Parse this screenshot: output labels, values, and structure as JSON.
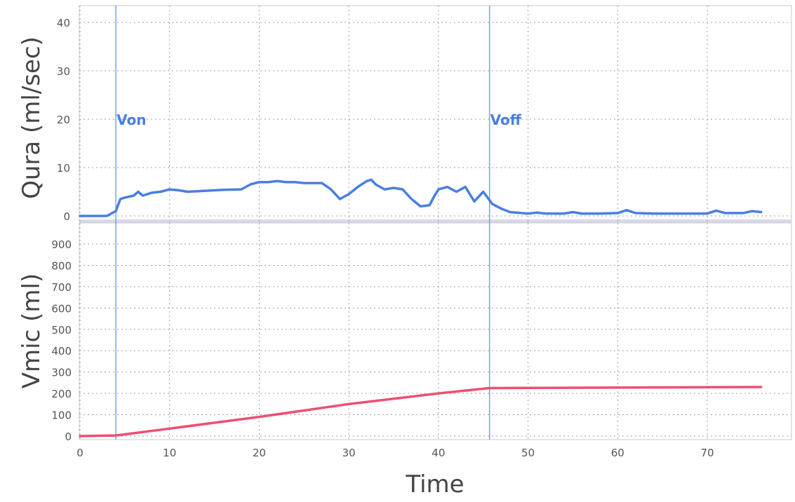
{
  "chart_data": [
    {
      "type": "line",
      "ylabel": "Qura (ml/sec)",
      "ylim": [
        0,
        43
      ],
      "yticks": [
        0,
        10,
        20,
        30,
        40
      ],
      "xlim": [
        0,
        80
      ],
      "grid": true,
      "series": [
        {
          "color": "#4a7fe0",
          "x": [
            0,
            2,
            3,
            4,
            4.5,
            5,
            6,
            6.5,
            7,
            7.5,
            8,
            9,
            10,
            11,
            12,
            14,
            16,
            18,
            19,
            20,
            21,
            22,
            23,
            24,
            25,
            26,
            27,
            28,
            29,
            30,
            31,
            32,
            32.5,
            33,
            34,
            35,
            36,
            37,
            38,
            39,
            39.5,
            40,
            41,
            42,
            43,
            44,
            45,
            46,
            47,
            48,
            50,
            51,
            52,
            54,
            55,
            56,
            58,
            60,
            61,
            62,
            64,
            66,
            68,
            70,
            71,
            72,
            74,
            75,
            76
          ],
          "values": [
            0,
            0,
            0,
            1,
            3.5,
            3.8,
            4.2,
            5,
            4.2,
            4.5,
            4.8,
            5,
            5.5,
            5.3,
            5,
            5.2,
            5.4,
            5.5,
            6.5,
            7,
            7,
            7.2,
            7,
            7,
            6.8,
            6.8,
            6.8,
            5.5,
            3.5,
            4.5,
            6,
            7.2,
            7.5,
            6.5,
            5.5,
            5.8,
            5.5,
            3.5,
            2,
            2.2,
            4,
            5.5,
            6,
            5,
            6,
            3,
            5,
            2.5,
            1.5,
            0.8,
            0.5,
            0.7,
            0.5,
            0.5,
            0.8,
            0.5,
            0.5,
            0.6,
            1.2,
            0.6,
            0.5,
            0.5,
            0.5,
            0.5,
            1.1,
            0.6,
            0.6,
            1,
            0.8
          ]
        }
      ],
      "annotations": [
        {
          "label": "Von",
          "x": 4
        },
        {
          "label": "Voff",
          "x": 45.7
        }
      ]
    },
    {
      "type": "line",
      "ylabel": "Vmic (ml)",
      "xlabel": "Time",
      "ylim": [
        0,
        1000
      ],
      "yticks": [
        0,
        100,
        200,
        300,
        400,
        500,
        600,
        700,
        800,
        900
      ],
      "xlim": [
        0,
        80
      ],
      "xticks": [
        0,
        10,
        20,
        30,
        40,
        50,
        60,
        70
      ],
      "grid": true,
      "series": [
        {
          "color": "#ee4f70",
          "x": [
            0,
            4,
            10,
            20,
            30,
            40,
            45.7,
            76
          ],
          "values": [
            0,
            3,
            35,
            90,
            150,
            200,
            225,
            230
          ]
        }
      ]
    }
  ]
}
